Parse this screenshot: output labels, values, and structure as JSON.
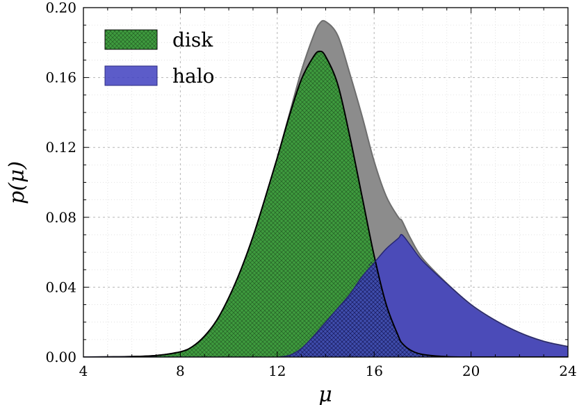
{
  "chart_data": {
    "type": "area",
    "title": "",
    "xlabel": "μ",
    "ylabel": "p(μ)",
    "xlim": [
      4,
      24
    ],
    "ylim": [
      0.0,
      0.2
    ],
    "xticks": [
      4,
      8,
      12,
      16,
      20,
      24
    ],
    "xtick_labels": [
      "4",
      "8",
      "12",
      "16",
      "20",
      "24"
    ],
    "yticks": [
      0.0,
      0.04,
      0.08,
      0.12,
      0.16,
      0.2
    ],
    "ytick_labels": [
      "0.00",
      "0.04",
      "0.08",
      "0.12",
      "0.16",
      "0.20"
    ],
    "grid": true,
    "legend_position": "top-left",
    "x": [
      4,
      5,
      6,
      7,
      8,
      8.5,
      9,
      9.5,
      10,
      10.5,
      11,
      11.5,
      12,
      12.5,
      13,
      13.5,
      13.75,
      14,
      14.5,
      15,
      15.5,
      16,
      16.5,
      17,
      17.15,
      17.5,
      18,
      19,
      20,
      21,
      22,
      23,
      24
    ],
    "series": [
      {
        "name": "disk",
        "color": "#3e9b3e",
        "hatch": "crosshatch",
        "values": [
          0,
          0.0001,
          0.0003,
          0.0009,
          0.003,
          0.006,
          0.012,
          0.021,
          0.034,
          0.05,
          0.069,
          0.091,
          0.114,
          0.138,
          0.159,
          0.172,
          0.175,
          0.172,
          0.156,
          0.126,
          0.092,
          0.058,
          0.03,
          0.012,
          0.008,
          0.004,
          0.0015,
          0.0002,
          0,
          0,
          0,
          0,
          0
        ]
      },
      {
        "name": "halo",
        "color": "#3f3fbf",
        "hatch": "none",
        "values": [
          0,
          0,
          0,
          0,
          0,
          0,
          0,
          0,
          0,
          0,
          0,
          0,
          0,
          0.001,
          0.005,
          0.012,
          0.016,
          0.02,
          0.028,
          0.036,
          0.046,
          0.054,
          0.062,
          0.068,
          0.07,
          0.064,
          0.055,
          0.042,
          0.03,
          0.021,
          0.014,
          0.009,
          0.006
        ]
      }
    ],
    "total_color": "#8c8c8c"
  }
}
